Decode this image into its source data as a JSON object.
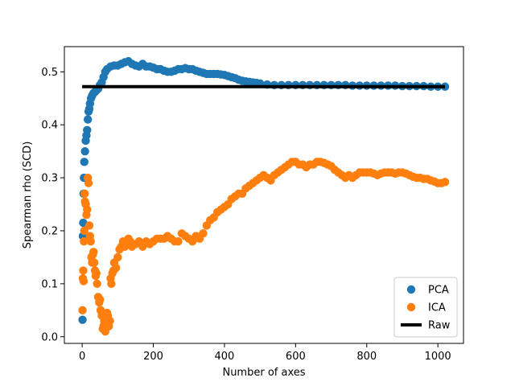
{
  "chart_data": {
    "type": "scatter",
    "title": "",
    "xlabel": "Number of axes",
    "ylabel": "Spearman rho (SCD)",
    "xlim": [
      -50,
      1072
    ],
    "ylim": [
      -0.0125,
      0.5475
    ],
    "xticks": [
      0,
      200,
      400,
      600,
      800,
      1000
    ],
    "yticks": [
      0.0,
      0.1,
      0.2,
      0.3,
      0.4,
      0.5
    ],
    "xtick_labels": [
      "0",
      "200",
      "400",
      "600",
      "800",
      "1000"
    ],
    "ytick_labels": [
      "0.0",
      "0.1",
      "0.2",
      "0.3",
      "0.4",
      "0.5"
    ],
    "grid": false,
    "legend_position": "lower-right",
    "series": [
      {
        "name": "PCA",
        "kind": "scatter",
        "color": "#1f77b4",
        "points": [
          [
            1,
            0.032
          ],
          [
            2,
            0.19
          ],
          [
            3,
            0.215
          ],
          [
            4,
            0.27
          ],
          [
            5,
            0.3
          ],
          [
            6,
            0.33
          ],
          [
            8,
            0.35
          ],
          [
            10,
            0.37
          ],
          [
            12,
            0.38
          ],
          [
            14,
            0.39
          ],
          [
            16,
            0.41
          ],
          [
            18,
            0.425
          ],
          [
            20,
            0.43
          ],
          [
            22,
            0.44
          ],
          [
            25,
            0.45
          ],
          [
            28,
            0.455
          ],
          [
            32,
            0.46
          ],
          [
            36,
            0.462
          ],
          [
            40,
            0.465
          ],
          [
            45,
            0.468
          ],
          [
            50,
            0.475
          ],
          [
            55,
            0.48
          ],
          [
            60,
            0.49
          ],
          [
            65,
            0.5
          ],
          [
            70,
            0.505
          ],
          [
            80,
            0.51
          ],
          [
            90,
            0.512
          ],
          [
            100,
            0.512
          ],
          [
            110,
            0.515
          ],
          [
            120,
            0.518
          ],
          [
            130,
            0.52
          ],
          [
            140,
            0.515
          ],
          [
            150,
            0.512
          ],
          [
            160,
            0.51
          ],
          [
            170,
            0.515
          ],
          [
            180,
            0.51
          ],
          [
            190,
            0.51
          ],
          [
            200,
            0.508
          ],
          [
            210,
            0.505
          ],
          [
            220,
            0.505
          ],
          [
            230,
            0.502
          ],
          [
            240,
            0.5
          ],
          [
            250,
            0.5
          ],
          [
            260,
            0.502
          ],
          [
            270,
            0.505
          ],
          [
            280,
            0.505
          ],
          [
            290,
            0.507
          ],
          [
            300,
            0.505
          ],
          [
            310,
            0.505
          ],
          [
            320,
            0.502
          ],
          [
            330,
            0.5
          ],
          [
            340,
            0.498
          ],
          [
            350,
            0.496
          ],
          [
            360,
            0.496
          ],
          [
            370,
            0.496
          ],
          [
            380,
            0.496
          ],
          [
            390,
            0.495
          ],
          [
            400,
            0.494
          ],
          [
            410,
            0.492
          ],
          [
            420,
            0.49
          ],
          [
            430,
            0.488
          ],
          [
            440,
            0.485
          ],
          [
            450,
            0.483
          ],
          [
            460,
            0.482
          ],
          [
            470,
            0.481
          ],
          [
            480,
            0.48
          ],
          [
            490,
            0.479
          ],
          [
            500,
            0.478
          ],
          [
            520,
            0.476
          ],
          [
            540,
            0.475
          ],
          [
            560,
            0.475
          ],
          [
            580,
            0.475
          ],
          [
            600,
            0.475
          ],
          [
            620,
            0.475
          ],
          [
            640,
            0.475
          ],
          [
            660,
            0.475
          ],
          [
            680,
            0.475
          ],
          [
            700,
            0.475
          ],
          [
            720,
            0.475
          ],
          [
            740,
            0.475
          ],
          [
            760,
            0.474
          ],
          [
            780,
            0.474
          ],
          [
            800,
            0.474
          ],
          [
            820,
            0.474
          ],
          [
            840,
            0.474
          ],
          [
            860,
            0.474
          ],
          [
            880,
            0.474
          ],
          [
            900,
            0.473
          ],
          [
            920,
            0.473
          ],
          [
            940,
            0.473
          ],
          [
            960,
            0.473
          ],
          [
            980,
            0.472
          ],
          [
            1000,
            0.472
          ],
          [
            1020,
            0.472
          ]
        ]
      },
      {
        "name": "ICA",
        "kind": "scatter",
        "color": "#ff7f0e",
        "points": [
          [
            1,
            0.05
          ],
          [
            2,
            0.11
          ],
          [
            3,
            0.125
          ],
          [
            4,
            0.105
          ],
          [
            5,
            0.18
          ],
          [
            6,
            0.2
          ],
          [
            7,
            0.27
          ],
          [
            8,
            0.255
          ],
          [
            10,
            0.25
          ],
          [
            12,
            0.23
          ],
          [
            14,
            0.24
          ],
          [
            16,
            0.3
          ],
          [
            18,
            0.29
          ],
          [
            20,
            0.21
          ],
          [
            22,
            0.19
          ],
          [
            24,
            0.18
          ],
          [
            26,
            0.15
          ],
          [
            28,
            0.14
          ],
          [
            30,
            0.155
          ],
          [
            32,
            0.16
          ],
          [
            34,
            0.14
          ],
          [
            36,
            0.125
          ],
          [
            38,
            0.115
          ],
          [
            40,
            0.12
          ],
          [
            42,
            0.1
          ],
          [
            45,
            0.075
          ],
          [
            48,
            0.065
          ],
          [
            50,
            0.07
          ],
          [
            52,
            0.05
          ],
          [
            55,
            0.04
          ],
          [
            58,
            0.015
          ],
          [
            60,
            0.02
          ],
          [
            62,
            0.03
          ],
          [
            65,
            0.01
          ],
          [
            68,
            0.035
          ],
          [
            70,
            0.045
          ],
          [
            72,
            0.04
          ],
          [
            75,
            0.02
          ],
          [
            78,
            0.03
          ],
          [
            80,
            0.11
          ],
          [
            82,
            0.1
          ],
          [
            85,
            0.12
          ],
          [
            88,
            0.125
          ],
          [
            90,
            0.14
          ],
          [
            95,
            0.13
          ],
          [
            100,
            0.15
          ],
          [
            105,
            0.165
          ],
          [
            110,
            0.17
          ],
          [
            115,
            0.18
          ],
          [
            120,
            0.17
          ],
          [
            125,
            0.175
          ],
          [
            130,
            0.185
          ],
          [
            135,
            0.18
          ],
          [
            140,
            0.17
          ],
          [
            150,
            0.175
          ],
          [
            160,
            0.18
          ],
          [
            170,
            0.17
          ],
          [
            180,
            0.18
          ],
          [
            190,
            0.175
          ],
          [
            200,
            0.18
          ],
          [
            210,
            0.185
          ],
          [
            220,
            0.185
          ],
          [
            230,
            0.185
          ],
          [
            240,
            0.19
          ],
          [
            250,
            0.185
          ],
          [
            260,
            0.18
          ],
          [
            270,
            0.18
          ],
          [
            280,
            0.195
          ],
          [
            290,
            0.19
          ],
          [
            300,
            0.185
          ],
          [
            310,
            0.18
          ],
          [
            320,
            0.19
          ],
          [
            330,
            0.185
          ],
          [
            340,
            0.195
          ],
          [
            350,
            0.21
          ],
          [
            360,
            0.22
          ],
          [
            370,
            0.225
          ],
          [
            380,
            0.235
          ],
          [
            390,
            0.24
          ],
          [
            400,
            0.245
          ],
          [
            410,
            0.25
          ],
          [
            420,
            0.26
          ],
          [
            430,
            0.265
          ],
          [
            440,
            0.27
          ],
          [
            450,
            0.27
          ],
          [
            460,
            0.28
          ],
          [
            470,
            0.285
          ],
          [
            480,
            0.29
          ],
          [
            490,
            0.295
          ],
          [
            500,
            0.3
          ],
          [
            510,
            0.305
          ],
          [
            520,
            0.3
          ],
          [
            530,
            0.295
          ],
          [
            540,
            0.305
          ],
          [
            550,
            0.31
          ],
          [
            560,
            0.315
          ],
          [
            570,
            0.32
          ],
          [
            580,
            0.325
          ],
          [
            590,
            0.33
          ],
          [
            600,
            0.33
          ],
          [
            610,
            0.325
          ],
          [
            620,
            0.325
          ],
          [
            630,
            0.32
          ],
          [
            640,
            0.325
          ],
          [
            650,
            0.325
          ],
          [
            660,
            0.33
          ],
          [
            670,
            0.33
          ],
          [
            680,
            0.328
          ],
          [
            690,
            0.325
          ],
          [
            700,
            0.322
          ],
          [
            710,
            0.315
          ],
          [
            720,
            0.31
          ],
          [
            730,
            0.305
          ],
          [
            740,
            0.3
          ],
          [
            750,
            0.305
          ],
          [
            760,
            0.3
          ],
          [
            770,
            0.305
          ],
          [
            780,
            0.31
          ],
          [
            790,
            0.31
          ],
          [
            800,
            0.31
          ],
          [
            810,
            0.31
          ],
          [
            820,
            0.308
          ],
          [
            830,
            0.305
          ],
          [
            840,
            0.308
          ],
          [
            850,
            0.31
          ],
          [
            860,
            0.31
          ],
          [
            870,
            0.31
          ],
          [
            880,
            0.308
          ],
          [
            890,
            0.31
          ],
          [
            900,
            0.31
          ],
          [
            910,
            0.308
          ],
          [
            920,
            0.305
          ],
          [
            930,
            0.302
          ],
          [
            940,
            0.3
          ],
          [
            950,
            0.3
          ],
          [
            960,
            0.298
          ],
          [
            970,
            0.298
          ],
          [
            980,
            0.295
          ],
          [
            990,
            0.293
          ],
          [
            1000,
            0.29
          ],
          [
            1010,
            0.29
          ],
          [
            1020,
            0.292
          ]
        ]
      },
      {
        "name": "Raw",
        "kind": "line",
        "color": "#000000",
        "points": [
          [
            0,
            0.472
          ],
          [
            1020,
            0.472
          ]
        ]
      }
    ]
  }
}
